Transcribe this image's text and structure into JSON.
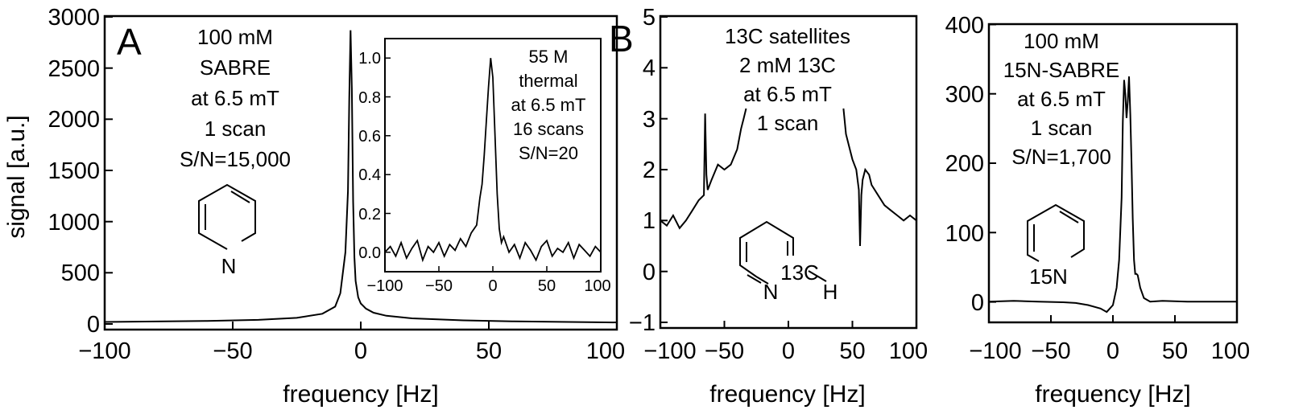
{
  "panel_labels": {
    "a": "A",
    "b": "B"
  },
  "chart_data": [
    {
      "type": "line",
      "panel": "A",
      "xlabel": "frequency [Hz]",
      "ylabel": "signal [a.u.]",
      "xlim": [
        -100,
        100
      ],
      "ylim": [
        0,
        3000
      ],
      "xticks": [
        "−100",
        "−50",
        "0",
        "50",
        "100"
      ],
      "yticks": [
        "0",
        "500",
        "1000",
        "1500",
        "2000",
        "2500",
        "3000"
      ],
      "annotation": [
        "100 mM",
        "SABRE",
        "at 6.5 mT",
        "1 scan",
        "S/N=15,000"
      ],
      "structure_label": "N",
      "series": [
        {
          "x": [
            -100,
            -60,
            -40,
            -25,
            -15,
            -10,
            -8,
            -6,
            -5,
            -4.5,
            -4,
            -3.5,
            -3,
            -2.5,
            -2,
            -1,
            0,
            2,
            5,
            10,
            20,
            40,
            60,
            100
          ],
          "y": [
            20,
            30,
            40,
            60,
            100,
            170,
            300,
            700,
            1300,
            2200,
            2870,
            2300,
            1200,
            650,
            420,
            260,
            200,
            150,
            110,
            80,
            55,
            35,
            25,
            15
          ]
        }
      ],
      "inset": {
        "type": "line",
        "xlim": [
          -100,
          100
        ],
        "ylim": [
          -0.1,
          1.1
        ],
        "xticks": [
          "−100",
          "−50",
          "0",
          "50",
          "100"
        ],
        "yticks": [
          "0.0",
          "0.2",
          "0.4",
          "0.6",
          "0.8",
          "1.0"
        ],
        "annotation": [
          "55 M",
          "thermal",
          "at 6.5 mT",
          "16 scans",
          "S/N=20"
        ],
        "series": [
          {
            "x": [
              -100,
              -95,
              -90,
              -85,
              -80,
              -75,
              -70,
              -65,
              -60,
              -55,
              -50,
              -45,
              -40,
              -35,
              -30,
              -25,
              -20,
              -15,
              -12,
              -10,
              -8,
              -6,
              -4,
              -2,
              0,
              2,
              4,
              6,
              8,
              10,
              15,
              20,
              25,
              30,
              35,
              40,
              45,
              50,
              55,
              60,
              65,
              70,
              75,
              80,
              85,
              90,
              95,
              100
            ],
            "y": [
              0.0,
              0.03,
              -0.02,
              0.05,
              -0.03,
              0.02,
              0.06,
              -0.04,
              0.03,
              0.0,
              0.05,
              -0.02,
              0.04,
              0.01,
              0.07,
              0.03,
              0.1,
              0.14,
              0.28,
              0.35,
              0.5,
              0.68,
              0.85,
              1.0,
              0.9,
              0.6,
              0.3,
              0.12,
              0.05,
              0.08,
              0.0,
              0.04,
              -0.03,
              0.05,
              0.01,
              -0.04,
              0.03,
              0.06,
              -0.02,
              0.02,
              0.0,
              0.05,
              -0.03,
              0.04,
              0.01,
              -0.02,
              0.03,
              0.0
            ]
          }
        ]
      }
    },
    {
      "type": "line",
      "panel": "B-left",
      "xlabel": "frequency [Hz]",
      "xlim": [
        -100,
        100
      ],
      "ylim": [
        -1,
        5
      ],
      "xticks": [
        "−100",
        "−50",
        "0",
        "50",
        "100"
      ],
      "yticks": [
        "−1",
        "0",
        "1",
        "2",
        "3",
        "4",
        "5"
      ],
      "annotation": [
        "13C satellites",
        "2 mM 13C",
        "at 6.5 mT",
        "1 scan"
      ],
      "structure_labels": {
        "n": "N",
        "c": "13C",
        "h": "H"
      },
      "series": [
        {
          "x": [
            -100,
            -95,
            -90,
            -85,
            -80,
            -75,
            -70,
            -66,
            -65,
            -64,
            -63,
            -60,
            -55,
            -50,
            -45,
            -40,
            -37,
            -35,
            -33
          ],
          "y": [
            1.0,
            0.9,
            1.1,
            0.85,
            1.0,
            1.2,
            1.4,
            1.5,
            3.1,
            1.9,
            1.6,
            1.8,
            2.1,
            2.0,
            2.1,
            2.4,
            2.8,
            3.0,
            3.2
          ]
        },
        {
          "x": [
            43,
            45,
            48,
            50,
            53,
            55,
            56,
            57,
            58,
            60,
            63,
            65,
            70,
            75,
            80,
            85,
            90,
            95,
            100
          ],
          "y": [
            3.2,
            2.7,
            2.4,
            2.2,
            2.0,
            1.6,
            0.5,
            1.5,
            1.8,
            2.0,
            1.9,
            1.7,
            1.5,
            1.3,
            1.2,
            1.1,
            1.0,
            1.1,
            1.0
          ]
        }
      ]
    },
    {
      "type": "line",
      "panel": "B-right",
      "xlabel": "frequency [Hz]",
      "xlim": [
        -100,
        100
      ],
      "ylim": [
        -30,
        400
      ],
      "xticks": [
        "−100",
        "−50",
        "0",
        "50",
        "100"
      ],
      "yticks": [
        "0",
        "100",
        "200",
        "300",
        "400"
      ],
      "annotation": [
        "100 mM",
        "15N-SABRE",
        "at 6.5 mT",
        "1 scan",
        "S/N=1,700"
      ],
      "structure_label": "15N",
      "series": [
        {
          "x": [
            -100,
            -80,
            -60,
            -40,
            -30,
            -20,
            -10,
            -5,
            0,
            3,
            5,
            7,
            8,
            9,
            10,
            11,
            12,
            13,
            14,
            15,
            16,
            17,
            18,
            19,
            20,
            22,
            25,
            30,
            40,
            60,
            100
          ],
          "y": [
            0,
            1,
            0,
            -1,
            -2,
            -5,
            -10,
            -15,
            -5,
            20,
            60,
            150,
            260,
            320,
            300,
            265,
            290,
            325,
            270,
            200,
            120,
            60,
            40,
            40,
            38,
            20,
            5,
            0,
            1,
            0,
            0
          ]
        }
      ]
    }
  ]
}
